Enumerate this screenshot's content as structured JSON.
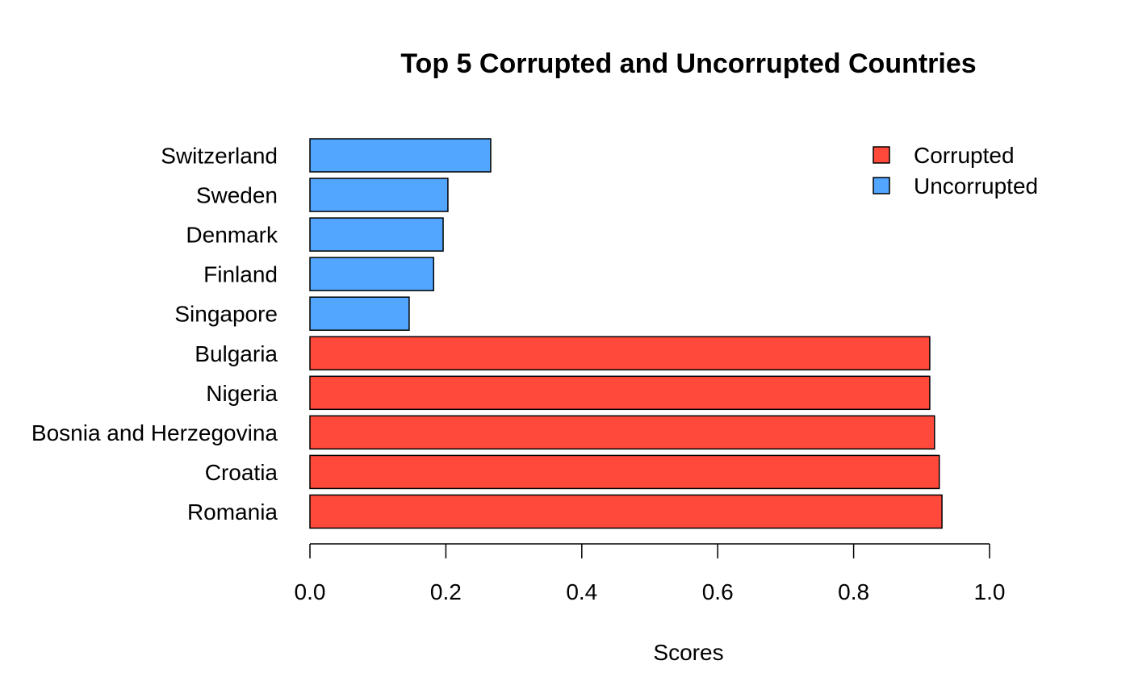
{
  "chart_data": {
    "type": "bar",
    "orientation": "horizontal",
    "title": "Top 5 Corrupted and Uncorrupted Countries",
    "xlabel": "Scores",
    "ylabel": "",
    "xlim": [
      0,
      1
    ],
    "x_ticks": [
      "0.0",
      "0.2",
      "0.4",
      "0.6",
      "0.8",
      "1.0"
    ],
    "grid": false,
    "legend_position": "top-right",
    "colors": {
      "Corrupted": "#ff4a3b",
      "Uncorrupted": "#52a6ff"
    },
    "legend": [
      {
        "name": "Corrupted"
      },
      {
        "name": "Uncorrupted"
      }
    ],
    "bars": [
      {
        "category": "Switzerland",
        "value": 0.266,
        "group": "Uncorrupted"
      },
      {
        "category": "Sweden",
        "value": 0.203,
        "group": "Uncorrupted"
      },
      {
        "category": "Denmark",
        "value": 0.196,
        "group": "Uncorrupted"
      },
      {
        "category": "Finland",
        "value": 0.182,
        "group": "Uncorrupted"
      },
      {
        "category": "Singapore",
        "value": 0.146,
        "group": "Uncorrupted"
      },
      {
        "category": "Bulgaria",
        "value": 0.912,
        "group": "Corrupted"
      },
      {
        "category": "Nigeria",
        "value": 0.912,
        "group": "Corrupted"
      },
      {
        "category": "Bosnia and Herzegovina",
        "value": 0.919,
        "group": "Corrupted"
      },
      {
        "category": "Croatia",
        "value": 0.926,
        "group": "Corrupted"
      },
      {
        "category": "Romania",
        "value": 0.93,
        "group": "Corrupted"
      }
    ]
  }
}
